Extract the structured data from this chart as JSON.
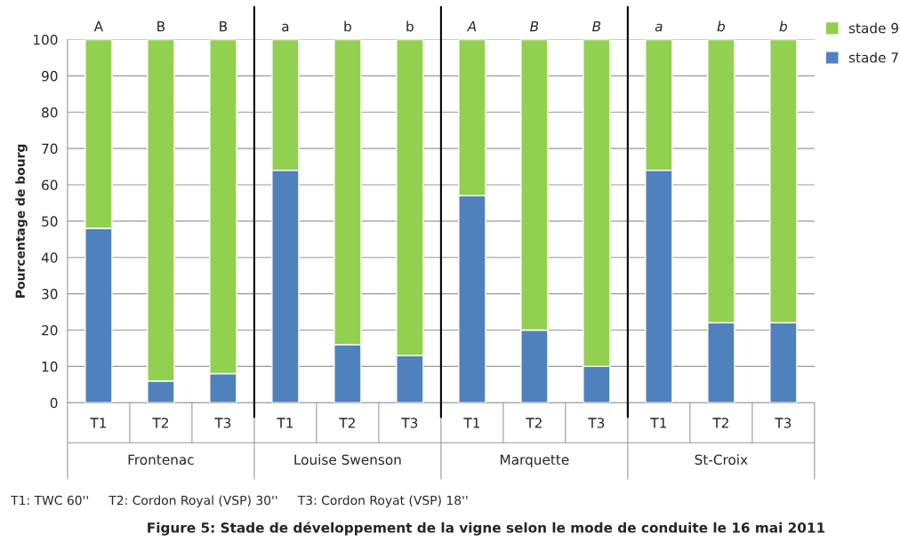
{
  "chart_data": {
    "type": "bar",
    "stacked": true,
    "title": "Figure 5: Stade de développement de la vigne selon le mode de conduite le 16 mai 2011",
    "ylabel": "Pourcentage de bourg",
    "categories": [
      "T1",
      "T2",
      "T3",
      "T1",
      "T2",
      "T3",
      "T1",
      "T2",
      "T3",
      "T1",
      "T2",
      "T3"
    ],
    "series": [
      {
        "name": "stade 7",
        "color": "#4f81bd",
        "values": [
          48,
          6,
          8,
          64,
          16,
          13,
          57,
          20,
          10,
          64,
          22,
          22
        ]
      },
      {
        "name": "stade 9",
        "color": "#92d050",
        "values": [
          52,
          94,
          92,
          36,
          84,
          87,
          43,
          80,
          90,
          36,
          78,
          78
        ]
      }
    ],
    "ylim": [
      0,
      100
    ],
    "yticks": [
      0,
      10,
      20,
      30,
      40,
      50,
      60,
      70,
      80,
      90,
      100
    ],
    "grid": "y",
    "legend": "top right",
    "annotations": [
      "A",
      "B",
      "B",
      "a",
      "b",
      "b",
      "A",
      "B",
      "B",
      "a",
      "b",
      "b",
      "Frontenac",
      "Louise Swenson",
      "Marquette",
      "St-Croix",
      "T1: TWC 60''     T2: Cordon Royal (VSP) 30''     T3: Cordon Royat (VSP) 18''"
    ]
  }
}
